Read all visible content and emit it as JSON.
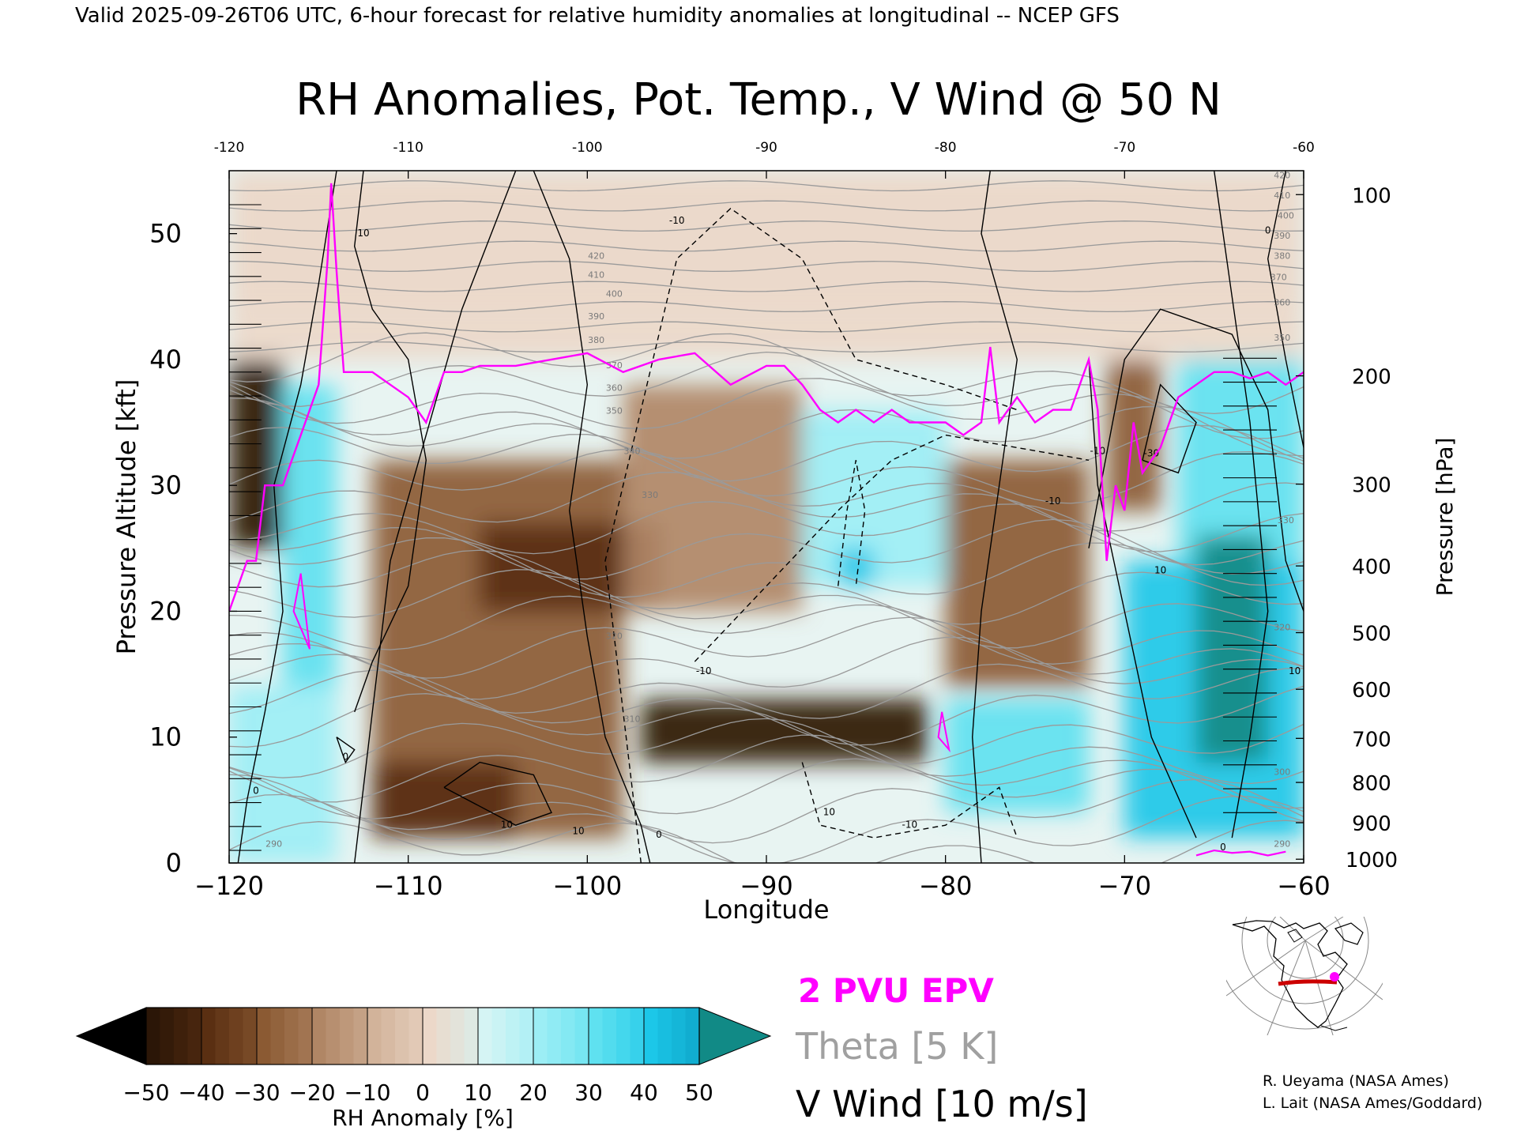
{
  "header": {
    "valid_line": "Valid 2025-09-26T06 UTC, 6-hour forecast for relative humidity anomalies at longitudinal -- NCEP GFS"
  },
  "chart_data": {
    "type": "heatmap",
    "title": "RH Anomalies, Pot. Temp., V Wind @ 50 N",
    "xlabel": "Longitude",
    "ylabel": "Pressure Altitude [kft]",
    "y2label": "Pressure [hPa]",
    "xlim": [
      -120,
      -60
    ],
    "ylim": [
      0,
      55
    ],
    "x_ticks": [
      -120,
      -110,
      -100,
      -90,
      -80,
      -70,
      -60
    ],
    "x_tick_labels": [
      "−120",
      "−110",
      "−100",
      "−90",
      "−80",
      "−70",
      "−60"
    ],
    "top_tick_labels": [
      "-120",
      "-110",
      "-100",
      "-90",
      "-80",
      "-70",
      "-60"
    ],
    "y_ticks": [
      0,
      10,
      20,
      30,
      40,
      50
    ],
    "y_tick_labels": [
      "0",
      "10",
      "20",
      "30",
      "40",
      "50"
    ],
    "pressure_ticks": [
      {
        "hpa": 100,
        "kft": 53.1,
        "label": "100"
      },
      {
        "hpa": 200,
        "kft": 38.7,
        "label": "200"
      },
      {
        "hpa": 300,
        "kft": 30.1,
        "label": "300"
      },
      {
        "hpa": 400,
        "kft": 23.6,
        "label": "400"
      },
      {
        "hpa": 500,
        "kft": 18.3,
        "label": "500"
      },
      {
        "hpa": 600,
        "kft": 13.8,
        "label": "600"
      },
      {
        "hpa": 700,
        "kft": 9.9,
        "label": "700"
      },
      {
        "hpa": 800,
        "kft": 6.4,
        "label": "800"
      },
      {
        "hpa": 900,
        "kft": 3.2,
        "label": "900"
      },
      {
        "hpa": 1000,
        "kft": 0.3,
        "label": "1000"
      }
    ],
    "rh_anomaly_regions": [
      {
        "x": [
          -120,
          -60
        ],
        "y": [
          44,
          55
        ],
        "value": 2
      },
      {
        "x": [
          -120,
          -60
        ],
        "y": [
          40,
          44
        ],
        "value": 5
      },
      {
        "x": [
          -120,
          -117
        ],
        "y": [
          25,
          40
        ],
        "value": -45
      },
      {
        "x": [
          -117,
          -114
        ],
        "y": [
          14,
          38
        ],
        "value": 30
      },
      {
        "x": [
          -112,
          -98
        ],
        "y": [
          2,
          32
        ],
        "value": -22
      },
      {
        "x": [
          -106,
          -96
        ],
        "y": [
          20,
          27
        ],
        "value": -32
      },
      {
        "x": [
          -98,
          -88
        ],
        "y": [
          20,
          38
        ],
        "value": -20
      },
      {
        "x": [
          -97,
          -81
        ],
        "y": [
          8,
          13
        ],
        "value": -42
      },
      {
        "x": [
          -112,
          -104
        ],
        "y": [
          2,
          8
        ],
        "value": -38
      },
      {
        "x": [
          -88,
          -80
        ],
        "y": [
          22,
          36
        ],
        "value": 25
      },
      {
        "x": [
          -86,
          -84
        ],
        "y": [
          22,
          25
        ],
        "value": 40
      },
      {
        "x": [
          -80,
          -72
        ],
        "y": [
          14,
          32
        ],
        "value": -22
      },
      {
        "x": [
          -80,
          -72
        ],
        "y": [
          4,
          13
        ],
        "value": 30
      },
      {
        "x": [
          -71,
          -68
        ],
        "y": [
          28,
          40
        ],
        "value": -25
      },
      {
        "x": [
          -67,
          -60
        ],
        "y": [
          24,
          40
        ],
        "value": 38
      },
      {
        "x": [
          -70,
          -60
        ],
        "y": [
          2,
          24
        ],
        "value": 42
      },
      {
        "x": [
          -66,
          -62
        ],
        "y": [
          8,
          26
        ],
        "value": 52
      },
      {
        "x": [
          -120,
          -114
        ],
        "y": [
          0,
          14
        ],
        "value": 25
      }
    ],
    "theta_contour_labels": [
      {
        "x": -99.5,
        "y": 48.0,
        "label": "420"
      },
      {
        "x": -99.5,
        "y": 46.5,
        "label": "410"
      },
      {
        "x": -98.5,
        "y": 45.0,
        "label": "400"
      },
      {
        "x": -99.5,
        "y": 43.2,
        "label": "390"
      },
      {
        "x": -99.5,
        "y": 41.3,
        "label": "380"
      },
      {
        "x": -98.5,
        "y": 39.3,
        "label": "370"
      },
      {
        "x": -98.5,
        "y": 37.5,
        "label": "360"
      },
      {
        "x": -98.5,
        "y": 35.7,
        "label": "350"
      },
      {
        "x": -97.5,
        "y": 32.5,
        "label": "340"
      },
      {
        "x": -96.5,
        "y": 29.0,
        "label": "330"
      },
      {
        "x": -98.5,
        "y": 17.8,
        "label": "320"
      },
      {
        "x": -97.5,
        "y": 11.2,
        "label": "310"
      },
      {
        "x": -117.5,
        "y": 1.3,
        "label": "290"
      },
      {
        "x": -61.2,
        "y": 54.4,
        "label": "420"
      },
      {
        "x": -61.2,
        "y": 52.8,
        "label": "410"
      },
      {
        "x": -61.0,
        "y": 51.2,
        "label": "400"
      },
      {
        "x": -61.2,
        "y": 49.6,
        "label": "390"
      },
      {
        "x": -61.2,
        "y": 48.0,
        "label": "380"
      },
      {
        "x": -61.4,
        "y": 46.3,
        "label": "370"
      },
      {
        "x": -61.2,
        "y": 44.3,
        "label": "360"
      },
      {
        "x": -61.2,
        "y": 41.5,
        "label": "350"
      },
      {
        "x": -61.0,
        "y": 27.0,
        "label": "330"
      },
      {
        "x": -61.2,
        "y": 18.5,
        "label": "320"
      },
      {
        "x": -61.2,
        "y": 7.0,
        "label": "300"
      },
      {
        "x": -61.2,
        "y": 1.3,
        "label": "290"
      }
    ],
    "vwind_contour_labels": [
      {
        "x": -112.5,
        "y": 49.8,
        "label": "10"
      },
      {
        "x": -113.5,
        "y": 8.2,
        "label": "0"
      },
      {
        "x": -104.5,
        "y": 2.8,
        "label": "10"
      },
      {
        "x": -100.5,
        "y": 2.3,
        "label": "10"
      },
      {
        "x": -95.0,
        "y": 50.8,
        "label": "-10"
      },
      {
        "x": -93.5,
        "y": 15.0,
        "label": "-10"
      },
      {
        "x": -86.5,
        "y": 3.8,
        "label": "10"
      },
      {
        "x": -82.0,
        "y": 2.8,
        "label": "-10"
      },
      {
        "x": -71.5,
        "y": 32.5,
        "label": "-10"
      },
      {
        "x": -68.5,
        "y": 32.3,
        "label": "-30"
      },
      {
        "x": -74.0,
        "y": 28.5,
        "label": "-10"
      },
      {
        "x": -68.0,
        "y": 23.0,
        "label": "10"
      },
      {
        "x": -64.5,
        "y": 1.0,
        "label": "0"
      },
      {
        "x": -60.5,
        "y": 15.0,
        "label": "10"
      },
      {
        "x": -62.0,
        "y": 50.0,
        "label": "0"
      },
      {
        "x": -96.0,
        "y": 2.0,
        "label": "0"
      },
      {
        "x": -118.5,
        "y": 5.5,
        "label": "0"
      }
    ],
    "epv_2pvu": {
      "x": [
        -120,
        -119,
        -118.5,
        -118,
        -117,
        -116.5,
        -116,
        -115.5,
        -115,
        -114.5,
        -114.3,
        -114,
        -113.6,
        -113,
        -112,
        -111,
        -110,
        -109,
        -108,
        -107,
        -106,
        -104,
        -102,
        -100,
        -98,
        -96,
        -94,
        -92,
        -90,
        -89,
        -88,
        -87,
        -86,
        -85,
        -84,
        -83,
        -82,
        -80,
        -79,
        -78,
        -77.5,
        -77,
        -76,
        -75,
        -74,
        -73,
        -72,
        -71.5,
        -71,
        -70.5,
        -70,
        -69.5,
        -69,
        -68,
        -67,
        -66,
        -65,
        -64,
        -63,
        -62,
        -61,
        -60
      ],
      "y": [
        20,
        24,
        24,
        30,
        30,
        32,
        34,
        36,
        38,
        48,
        54,
        47,
        39,
        39,
        39,
        38,
        37,
        35,
        39,
        39,
        39.5,
        39.5,
        40,
        40.5,
        39,
        40,
        40.5,
        38,
        39.5,
        39.5,
        38,
        36,
        35,
        36,
        35,
        36,
        35,
        35,
        34,
        35,
        41,
        35,
        37,
        35,
        36,
        36,
        40,
        36,
        24,
        30,
        28,
        35,
        31,
        33,
        37,
        38,
        39,
        39,
        38.5,
        39,
        38,
        39
      ]
    },
    "color_scale": {
      "label": "RH Anomaly [%]",
      "ticks": [
        "−50",
        "−40",
        "−30",
        "−20",
        "−10",
        "0",
        "10",
        "20",
        "30",
        "40",
        "50"
      ],
      "values": [
        -50,
        -40,
        -30,
        -20,
        -10,
        0,
        10,
        20,
        30,
        40,
        50
      ],
      "colors": [
        "#2b1607",
        "#5a2f12",
        "#8b5a33",
        "#b08665",
        "#d2b39a",
        "#ecd8c9",
        "#d5f4f4",
        "#9ceef5",
        "#5fe1f0",
        "#1cc7e8",
        "#0a9cc0"
      ],
      "under_color": "#000000",
      "over_color": "#118a86"
    },
    "legend": {
      "epv_label": "2 PVU EPV",
      "theta_label": "Theta [5 K]",
      "vwind_label": "V Wind [10 m/s]",
      "epv_color": "#ff00ff",
      "theta_color": "#a0a0a0"
    },
    "colors": {
      "stratosphere": "#e2e6e0",
      "neutral": "#e8f4f2"
    }
  },
  "credits": {
    "line1": "R. Ueyama (NASA Ames)",
    "line2": "L. Lait (NASA Ames/Goddard)"
  },
  "locator_map": {
    "track_color": "#cc0000",
    "marker_color": "#ff00ff"
  }
}
